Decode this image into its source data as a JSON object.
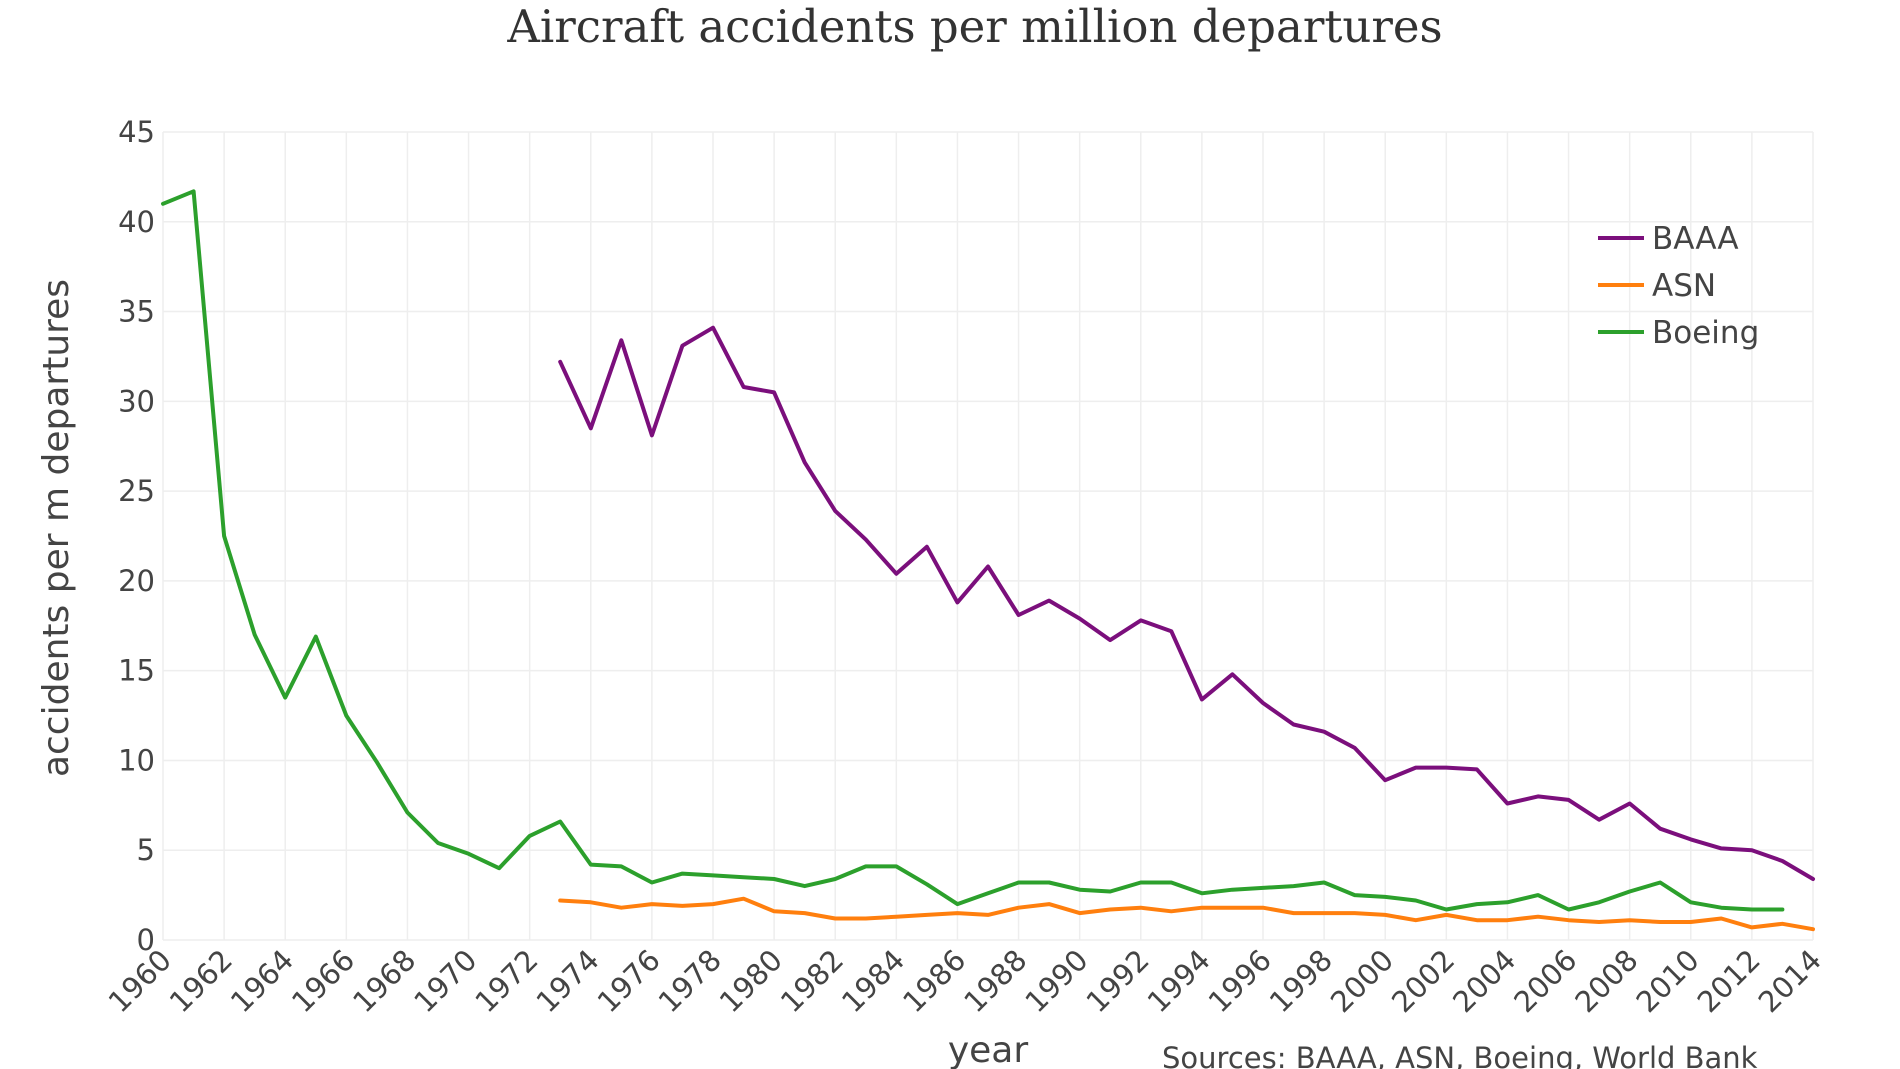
{
  "chart_data": {
    "type": "line",
    "title": "Aircraft accidents per million departures",
    "xlabel": "year",
    "ylabel": "accidents per m departures",
    "source": "Sources: BAAA, ASN, Boeing, World Bank",
    "xlim": [
      1960,
      2014
    ],
    "ylim": [
      0,
      45
    ],
    "x_ticks": [
      "1960",
      "1962",
      "1964",
      "1966",
      "1968",
      "1970",
      "1972",
      "1974",
      "1976",
      "1978",
      "1980",
      "1982",
      "1984",
      "1986",
      "1988",
      "1990",
      "1992",
      "1994",
      "1996",
      "1998",
      "2000",
      "2002",
      "2004",
      "2006",
      "2008",
      "2010",
      "2012",
      "2014"
    ],
    "y_ticks": [
      "0",
      "5",
      "10",
      "15",
      "20",
      "25",
      "30",
      "35",
      "40",
      "45"
    ],
    "grid": true,
    "legend_position": "top-right",
    "series": [
      {
        "name": "BAAA",
        "color": "#7b0f7c",
        "x": [
          1973,
          1974,
          1975,
          1976,
          1977,
          1978,
          1979,
          1980,
          1981,
          1982,
          1983,
          1984,
          1985,
          1986,
          1987,
          1988,
          1989,
          1990,
          1991,
          1992,
          1993,
          1994,
          1995,
          1996,
          1997,
          1998,
          1999,
          2000,
          2001,
          2002,
          2003,
          2004,
          2005,
          2006,
          2007,
          2008,
          2009,
          2010,
          2011,
          2012,
          2013,
          2014
        ],
        "y": [
          32.2,
          28.5,
          33.4,
          28.1,
          33.1,
          34.1,
          30.8,
          30.5,
          26.6,
          23.9,
          22.3,
          20.4,
          21.9,
          18.8,
          20.8,
          18.1,
          18.9,
          17.9,
          16.7,
          17.8,
          17.2,
          13.4,
          14.8,
          13.2,
          12.0,
          11.6,
          10.7,
          8.9,
          9.6,
          9.6,
          9.5,
          7.6,
          8.0,
          7.8,
          6.7,
          7.6,
          6.2,
          5.6,
          5.1,
          5.0,
          4.4,
          3.4
        ]
      },
      {
        "name": "ASN",
        "color": "#ff7f0e",
        "x": [
          1973,
          1974,
          1975,
          1976,
          1977,
          1978,
          1979,
          1980,
          1981,
          1982,
          1983,
          1984,
          1985,
          1986,
          1987,
          1988,
          1989,
          1990,
          1991,
          1992,
          1993,
          1994,
          1995,
          1996,
          1997,
          1998,
          1999,
          2000,
          2001,
          2002,
          2003,
          2004,
          2005,
          2006,
          2007,
          2008,
          2009,
          2010,
          2011,
          2012,
          2013,
          2014
        ],
        "y": [
          2.2,
          2.1,
          1.8,
          2.0,
          1.9,
          2.0,
          2.3,
          1.6,
          1.5,
          1.2,
          1.2,
          1.3,
          1.4,
          1.5,
          1.4,
          1.8,
          2.0,
          1.5,
          1.7,
          1.8,
          1.6,
          1.8,
          1.8,
          1.8,
          1.5,
          1.5,
          1.5,
          1.4,
          1.1,
          1.4,
          1.1,
          1.1,
          1.3,
          1.1,
          1.0,
          1.1,
          1.0,
          1.0,
          1.2,
          0.7,
          0.9,
          0.6
        ]
      },
      {
        "name": "Boeing",
        "color": "#2ca02c",
        "x": [
          1960,
          1961,
          1962,
          1963,
          1964,
          1965,
          1966,
          1967,
          1968,
          1969,
          1970,
          1971,
          1972,
          1973,
          1974,
          1975,
          1976,
          1977,
          1978,
          1979,
          1980,
          1981,
          1982,
          1983,
          1984,
          1985,
          1986,
          1987,
          1988,
          1989,
          1990,
          1991,
          1992,
          1993,
          1994,
          1995,
          1996,
          1997,
          1998,
          1999,
          2000,
          2001,
          2002,
          2003,
          2004,
          2005,
          2006,
          2007,
          2008,
          2009,
          2010,
          2011,
          2012,
          2013
        ],
        "y": [
          41.0,
          41.7,
          22.5,
          17.0,
          13.5,
          16.9,
          12.5,
          9.9,
          7.1,
          5.4,
          4.8,
          4.0,
          5.8,
          6.6,
          4.2,
          4.1,
          3.2,
          3.7,
          3.6,
          3.5,
          3.4,
          3.0,
          3.4,
          4.1,
          4.1,
          3.1,
          2.0,
          2.6,
          3.2,
          3.2,
          2.8,
          2.7,
          3.2,
          3.2,
          2.6,
          2.8,
          2.9,
          3.0,
          3.2,
          2.5,
          2.4,
          2.2,
          1.7,
          2.0,
          2.1,
          2.5,
          1.7,
          2.1,
          2.7,
          3.2,
          2.1,
          1.8,
          1.7,
          1.7
        ]
      }
    ]
  }
}
